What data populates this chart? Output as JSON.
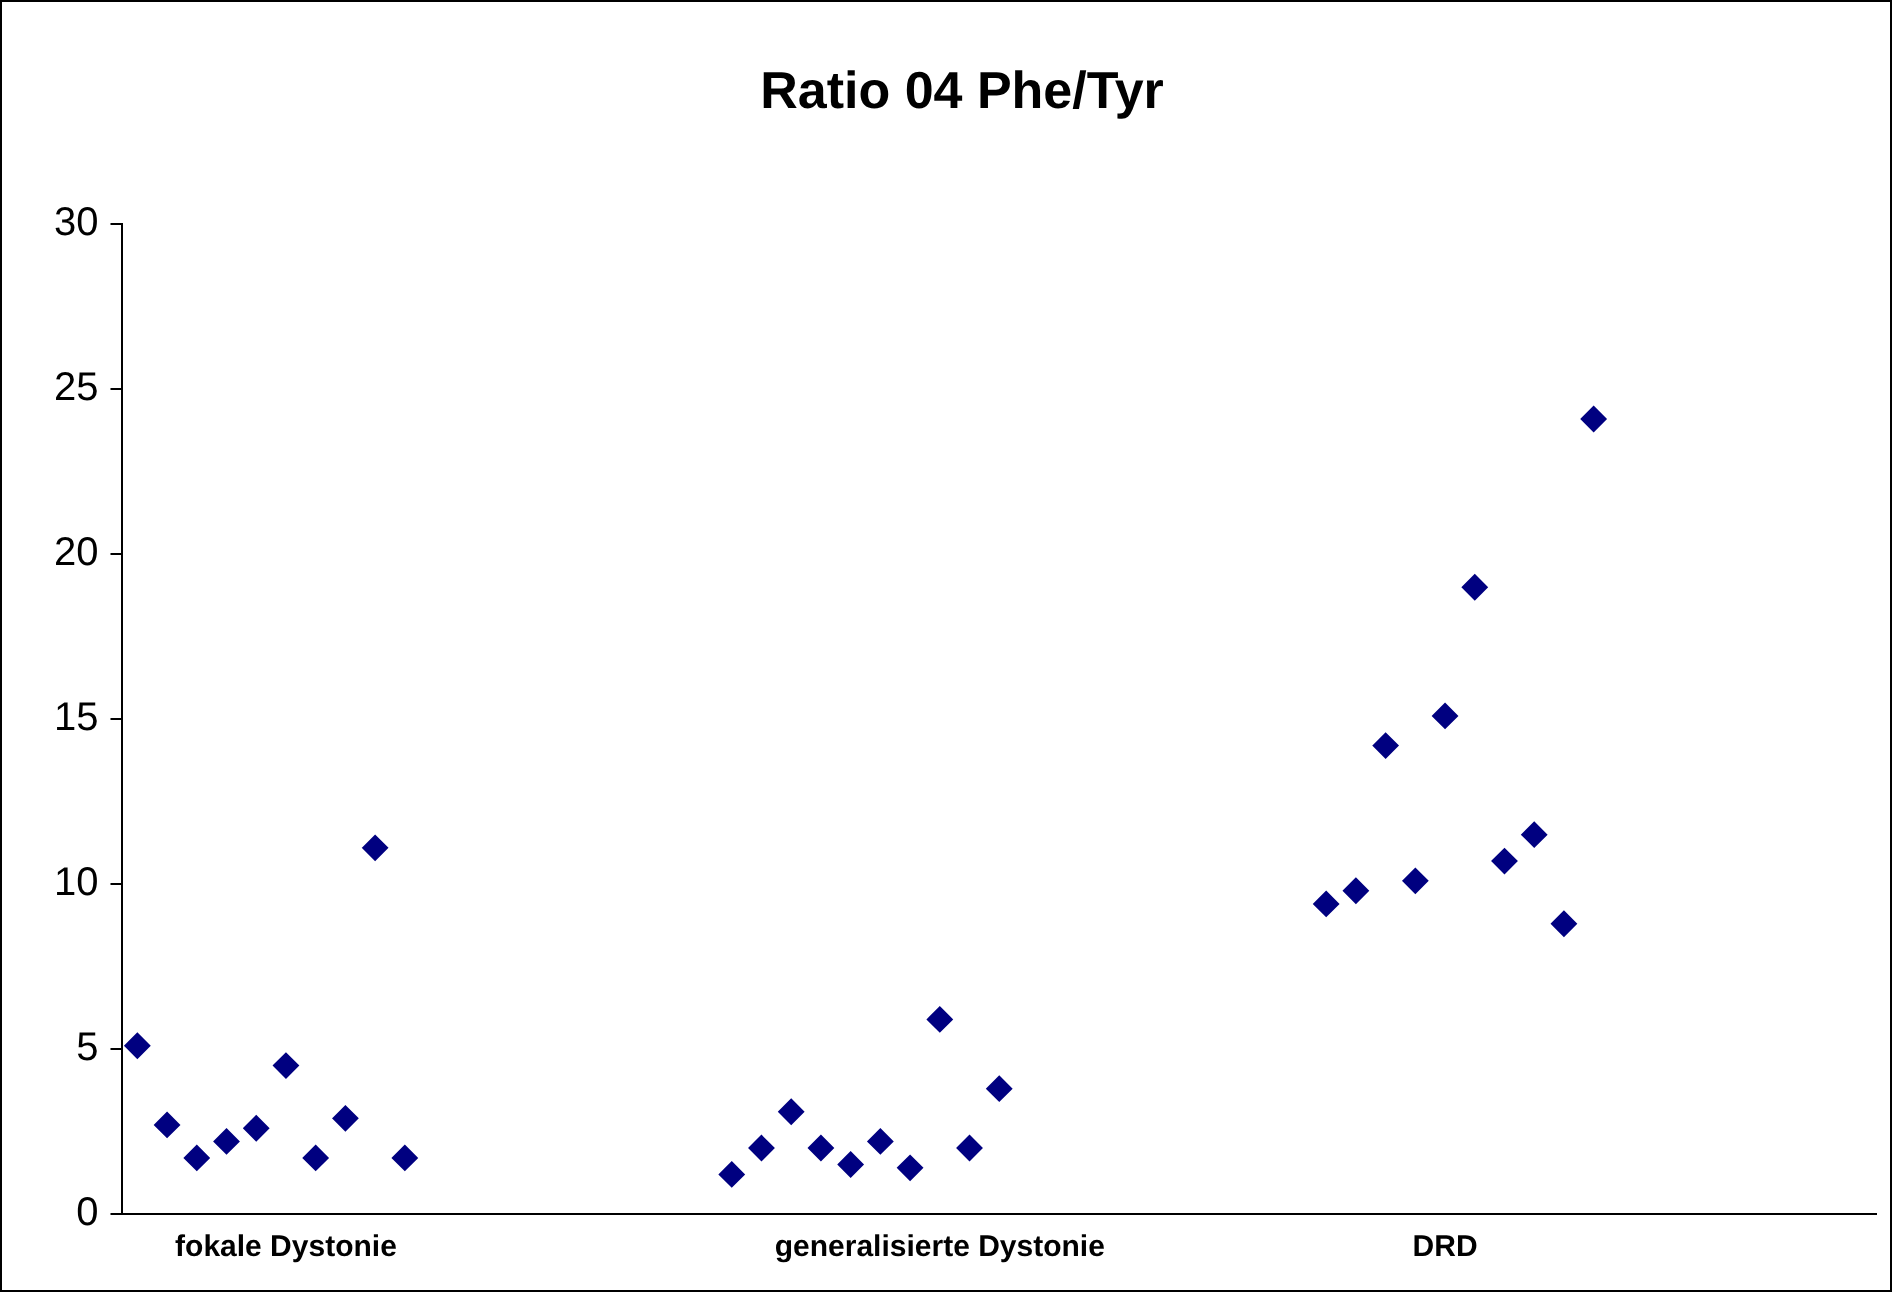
{
  "chart_data": {
    "type": "scatter",
    "title": "Ratio 04 Phe/Tyr",
    "categories": [
      null,
      null,
      null,
      null,
      null,
      "fokale Dystonie",
      null,
      null,
      null,
      null,
      null,
      null,
      null,
      null,
      null,
      null,
      null,
      null,
      null,
      null,
      null,
      null,
      null,
      null,
      null,
      null,
      null,
      "generalisierte Dystonie",
      null,
      null,
      null,
      null,
      null,
      null,
      null,
      null,
      null,
      null,
      null,
      null,
      null,
      null,
      null,
      null,
      "DRD",
      null,
      null,
      null,
      null,
      null,
      null,
      null,
      null,
      null,
      null,
      null,
      null,
      null,
      null
    ],
    "values": [
      5.1,
      2.7,
      1.7,
      2.2,
      2.6,
      4.5,
      1.7,
      2.9,
      11.1,
      1.7,
      null,
      null,
      null,
      null,
      null,
      null,
      null,
      null,
      null,
      null,
      1.2,
      2.0,
      3.1,
      2.0,
      1.5,
      2.2,
      1.4,
      5.9,
      2.0,
      3.8,
      null,
      null,
      null,
      null,
      null,
      null,
      null,
      null,
      null,
      null,
      9.4,
      9.8,
      14.2,
      10.1,
      15.1,
      19.0,
      10.7,
      11.5,
      8.8,
      24.1,
      null,
      null,
      null,
      null,
      null,
      null,
      null,
      null,
      null
    ],
    "color": "#000080",
    "marker": "diamond",
    "ylim": [
      0,
      30
    ],
    "yticks": [
      0,
      5,
      10,
      15,
      20,
      25,
      30
    ],
    "grid": false,
    "legend": false
  }
}
